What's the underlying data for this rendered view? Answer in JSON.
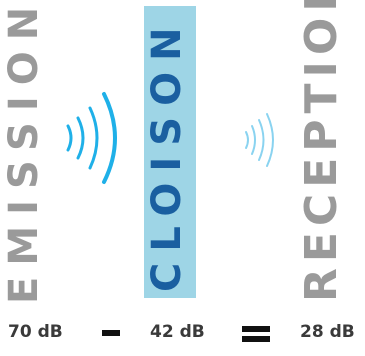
{
  "labels": {
    "emission": "EMISSION",
    "cloison": "CLOISON",
    "reception": "RECEPTION"
  },
  "formula": {
    "value1": "70 dB",
    "value2": "42 dB",
    "value3": "28 dB"
  },
  "colors": {
    "emission_text": "#9a9a9a",
    "cloison_text": "#1a5fa0",
    "cloison_panel": "#9ed5e6",
    "reception_text": "#9a9a9a",
    "wave_strong": "#1fb0e8",
    "wave_weak": "#8ad3f0"
  },
  "icons": [
    "sound-wave-strong-icon",
    "sound-wave-weak-icon",
    "minus-icon",
    "equals-icon"
  ]
}
